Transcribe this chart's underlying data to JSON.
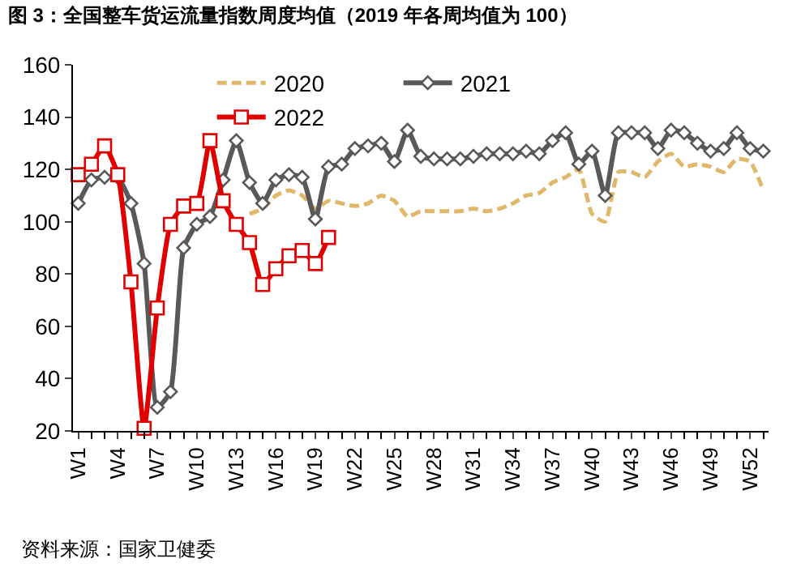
{
  "chart_data": {
    "type": "line",
    "title": "图 3：全国整车货运流量指数周度均值（2019 年各周均值为 100）",
    "categories": [
      "W1",
      null,
      null,
      "W4",
      null,
      null,
      "W7",
      null,
      null,
      "W10",
      null,
      null,
      "W13",
      null,
      null,
      "W16",
      null,
      null,
      "W19",
      null,
      null,
      "W22",
      null,
      null,
      "W25",
      null,
      null,
      "W28",
      null,
      null,
      "W31",
      null,
      null,
      "W34",
      null,
      null,
      "W37",
      null,
      null,
      "W40",
      null,
      null,
      "W43",
      null,
      null,
      "W46",
      null,
      null,
      "W49",
      null,
      null,
      "W52",
      null
    ],
    "series": [
      {
        "name": "2020",
        "color": "#e0b86c",
        "line_style": "dashed",
        "marker": "none",
        "values": [
          null,
          null,
          null,
          null,
          null,
          null,
          null,
          null,
          null,
          null,
          null,
          null,
          null,
          103,
          105,
          110,
          112,
          110,
          105,
          108,
          107,
          106,
          107,
          110,
          108,
          102,
          104,
          104,
          104,
          104,
          105,
          104,
          105,
          107,
          110,
          111,
          115,
          117,
          120,
          103,
          100,
          119,
          119,
          117,
          123,
          126,
          121,
          122,
          121,
          119,
          124,
          123,
          112
        ]
      },
      {
        "name": "2021",
        "color": "#595959",
        "line_style": "solid",
        "marker": "diamond",
        "values": [
          107,
          116,
          117,
          117,
          107,
          84,
          29,
          35,
          90,
          99,
          102,
          116,
          131,
          115,
          107,
          116,
          118,
          117,
          101,
          121,
          122,
          128,
          129,
          130,
          123,
          135,
          125,
          124,
          124,
          124,
          125,
          126,
          126,
          126,
          127,
          126,
          131,
          134,
          122,
          127,
          110,
          134,
          134,
          134,
          128,
          135,
          134,
          130,
          127,
          128,
          134,
          128,
          127
        ]
      },
      {
        "name": "2022",
        "color": "#e00000",
        "line_style": "solid",
        "marker": "square",
        "values": [
          118,
          122,
          129,
          118,
          77,
          21,
          67,
          99,
          106,
          107,
          131,
          108,
          99,
          92,
          76,
          82,
          87,
          89,
          84,
          94,
          null,
          null,
          null,
          null,
          null,
          null,
          null,
          null,
          null,
          null,
          null,
          null,
          null,
          null,
          null,
          null,
          null,
          null,
          null,
          null,
          null,
          null,
          null,
          null,
          null,
          null,
          null,
          null,
          null,
          null,
          null,
          null,
          null
        ]
      }
    ],
    "ylim": [
      20,
      160
    ],
    "yticks": [
      20,
      40,
      60,
      80,
      100,
      120,
      140,
      160
    ],
    "legend": "top",
    "annotations": [
      "资料来源：国家卫健委"
    ]
  }
}
